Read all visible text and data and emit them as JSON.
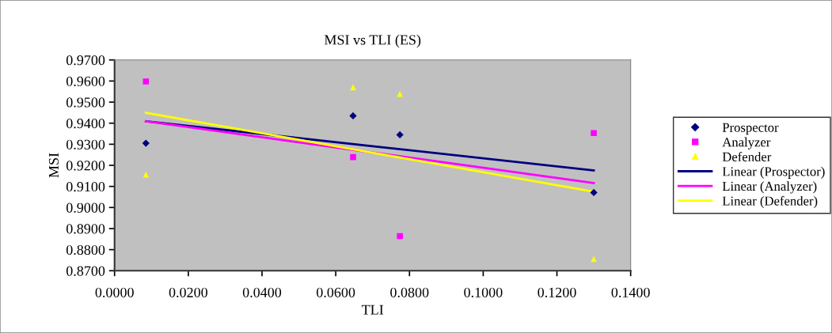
{
  "chart_data": {
    "type": "scatter",
    "title": "MSI vs TLI (ES)",
    "xlabel": "TLI",
    "ylabel": "MSI",
    "x": [
      0.0085,
      0.0647,
      0.0774,
      0.13
    ],
    "series": [
      {
        "name": "Prospector",
        "color": "#000080",
        "marker": "diamond",
        "values": [
          0.9305,
          0.9435,
          0.9345,
          0.9071
        ]
      },
      {
        "name": "Analyzer",
        "color": "#ff00ff",
        "marker": "square",
        "values": [
          0.9598,
          0.9239,
          0.8864,
          0.9353
        ]
      },
      {
        "name": "Defender",
        "color": "#ffff00",
        "marker": "triangle",
        "values": [
          0.9156,
          0.957,
          0.9539,
          0.8756
        ]
      },
      {
        "name": "Linear (Prospector)",
        "type": "line",
        "color": "#000080",
        "x": [
          0.0085,
          0.07,
          0.13
        ],
        "values": [
          0.9409,
          0.9291,
          0.9176
        ]
      },
      {
        "name": "Linear (Analyzer)",
        "type": "line",
        "color": "#ff00ff",
        "x": [
          0.0085,
          0.07,
          0.13
        ],
        "values": [
          0.9409,
          0.9261,
          0.9116
        ]
      },
      {
        "name": "Linear (Defender)",
        "type": "line",
        "color": "#ffff00",
        "x": [
          0.0085,
          0.07,
          0.13
        ],
        "values": [
          0.9449,
          0.926,
          0.9075
        ]
      }
    ],
    "xlim": [
      0.0,
      0.14
    ],
    "xticks": [
      {
        "value": 0,
        "label": "0.0000"
      },
      {
        "value": 0.02,
        "label": "0.0200"
      },
      {
        "value": 0.04,
        "label": "0.0400"
      },
      {
        "value": 0.06,
        "label": "0.0600"
      },
      {
        "value": 0.08,
        "label": "0.0800"
      },
      {
        "value": 0.1,
        "label": "0.1000"
      },
      {
        "value": 0.12,
        "label": "0.1200"
      },
      {
        "value": 0.14,
        "label": "0.1400"
      }
    ],
    "ylim": [
      0.87,
      0.97
    ],
    "yticks": [
      {
        "value": 0.87,
        "label": "0.8700"
      },
      {
        "value": 0.88,
        "label": "0.8800"
      },
      {
        "value": 0.89,
        "label": "0.8900"
      },
      {
        "value": 0.9,
        "label": "0.9000"
      },
      {
        "value": 0.91,
        "label": "0.9100"
      },
      {
        "value": 0.92,
        "label": "0.9200"
      },
      {
        "value": 0.93,
        "label": "0.9300"
      },
      {
        "value": 0.94,
        "label": "0.9400"
      },
      {
        "value": 0.95,
        "label": "0.9500"
      },
      {
        "value": 0.96,
        "label": "0.9600"
      },
      {
        "value": 0.97,
        "label": "0.9700"
      }
    ],
    "grid": false,
    "legend": "right"
  }
}
